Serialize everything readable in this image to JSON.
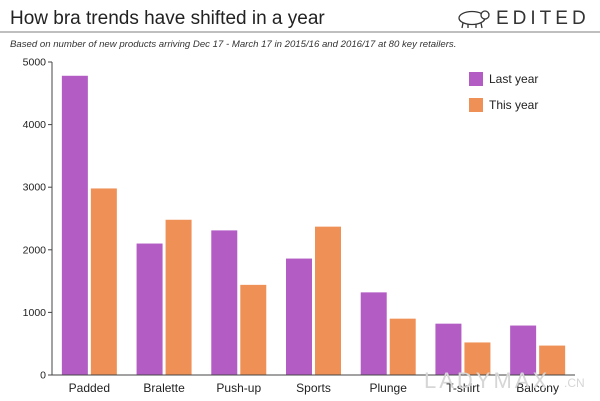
{
  "chart_data": {
    "type": "bar",
    "title": "How bra trends have shifted in a year",
    "subtitle": "Based on number of new products arriving Dec 17 - March 17 in 2015/16 and 2016/17 at 80 key retailers.",
    "categories": [
      "Padded",
      "Bralette",
      "Push-up",
      "Sports",
      "Plunge",
      "T-shirt",
      "Balcony"
    ],
    "series": [
      {
        "name": "Last year",
        "color": "#b25cc4",
        "values": [
          4780,
          2100,
          2310,
          1860,
          1320,
          820,
          790
        ]
      },
      {
        "name": "This year",
        "color": "#ef9156",
        "values": [
          2980,
          2480,
          1440,
          2370,
          900,
          520,
          470
        ]
      }
    ],
    "yticks": [
      0,
      1000,
      2000,
      3000,
      4000,
      5000
    ],
    "ylim": [
      0,
      5000
    ],
    "xlabel": "",
    "ylabel": "",
    "grid": false,
    "legend_position": "top-right"
  },
  "brand": {
    "name": "EDITED",
    "logo_icon": "polar-bear-icon"
  },
  "watermark": {
    "text": "LADYMAX",
    "suffix": ".CN"
  }
}
